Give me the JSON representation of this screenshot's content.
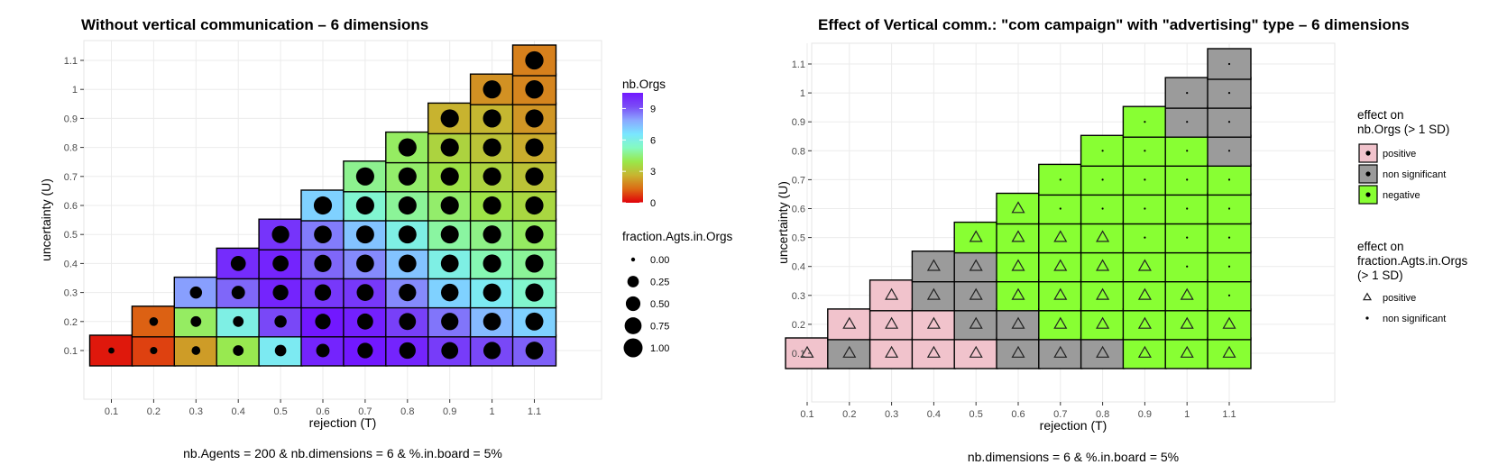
{
  "chart_data": [
    {
      "type": "heatmap",
      "title": "Without vertical communication – 6 dimensions",
      "xlabel": "rejection (T)",
      "ylabel": "uncertainty (U)",
      "caption": "nb.Agents = 200 & nb.dimensions = 6 & %.in.board = 5%",
      "x_ticks": [
        "0.1",
        "0.2",
        "0.3",
        "0.4",
        "0.5",
        "0.6",
        "0.7",
        "0.8",
        "0.9",
        "1",
        "1.1"
      ],
      "y_ticks": [
        "0.1",
        "0.2",
        "0.3",
        "0.4",
        "0.5",
        "0.6",
        "0.7",
        "0.8",
        "0.9",
        "1",
        "1.1"
      ],
      "fill_legend": {
        "title": "nb.Orgs",
        "ticks": [
          "0",
          "3",
          "6",
          "9"
        ],
        "range": [
          0,
          10.5
        ],
        "colors": [
          "#e0000a",
          "#dc6a14",
          "#c8b430",
          "#99e84a",
          "#84fac0",
          "#7ae6ff",
          "#8aa8ff",
          "#7a4cf6",
          "#7218ff"
        ]
      },
      "size_legend": {
        "title": "fraction.Agts.in.Orgs",
        "labels": [
          "0.00",
          "0.25",
          "0.50",
          "0.75",
          "1.00"
        ],
        "values": [
          0,
          0.25,
          0.5,
          0.75,
          1.0
        ]
      },
      "cells_note": "columns by rejection; each cell: [uncertainty, nb.Orgs, fraction.Agts.in.Orgs]",
      "columns": [
        {
          "x": "0.1",
          "cells": [
            [
              0.1,
              0.3,
              0.02
            ]
          ]
        },
        {
          "x": "0.2",
          "cells": [
            [
              0.1,
              0.8,
              0.05
            ],
            [
              0.2,
              1.2,
              0.1
            ]
          ]
        },
        {
          "x": "0.3",
          "cells": [
            [
              0.1,
              2.2,
              0.1
            ],
            [
              0.2,
              4.2,
              0.2
            ],
            [
              0.3,
              8.0,
              0.3
            ]
          ]
        },
        {
          "x": "0.4",
          "cells": [
            [
              0.1,
              4.0,
              0.2
            ],
            [
              0.2,
              6.0,
              0.2
            ],
            [
              0.3,
              8.8,
              0.4
            ],
            [
              0.4,
              10.0,
              0.55
            ]
          ]
        },
        {
          "x": "0.5",
          "cells": [
            [
              0.1,
              6.3,
              0.25
            ],
            [
              0.2,
              9.3,
              0.3
            ],
            [
              0.3,
              10.2,
              0.6
            ],
            [
              0.4,
              10.2,
              0.65
            ],
            [
              0.5,
              9.8,
              0.8
            ]
          ]
        },
        {
          "x": "0.6",
          "cells": [
            [
              0.1,
              10.2,
              0.4
            ],
            [
              0.2,
              10.5,
              0.6
            ],
            [
              0.3,
              9.7,
              0.7
            ],
            [
              0.4,
              8.8,
              0.8
            ],
            [
              0.5,
              8.5,
              0.85
            ],
            [
              0.6,
              7.0,
              0.9
            ]
          ]
        },
        {
          "x": "0.7",
          "cells": [
            [
              0.1,
              10.5,
              0.6
            ],
            [
              0.2,
              10.3,
              0.65
            ],
            [
              0.3,
              9.7,
              0.75
            ],
            [
              0.4,
              8.3,
              0.85
            ],
            [
              0.5,
              7.3,
              0.88
            ],
            [
              0.6,
              5.6,
              0.9
            ],
            [
              0.7,
              4.7,
              0.9
            ]
          ]
        },
        {
          "x": "0.8",
          "cells": [
            [
              0.1,
              10.2,
              0.7
            ],
            [
              0.2,
              9.5,
              0.75
            ],
            [
              0.3,
              8.3,
              0.8
            ],
            [
              0.4,
              7.3,
              0.85
            ],
            [
              0.5,
              6.0,
              0.88
            ],
            [
              0.6,
              4.8,
              0.9
            ],
            [
              0.7,
              4.3,
              0.9
            ],
            [
              0.8,
              4.2,
              0.9
            ]
          ]
        },
        {
          "x": "0.9",
          "cells": [
            [
              0.1,
              9.6,
              0.75
            ],
            [
              0.2,
              8.6,
              0.8
            ],
            [
              0.3,
              7.0,
              0.82
            ],
            [
              0.4,
              6.0,
              0.85
            ],
            [
              0.5,
              4.9,
              0.88
            ],
            [
              0.6,
              4.3,
              0.9
            ],
            [
              0.7,
              3.8,
              0.9
            ],
            [
              0.8,
              3.4,
              0.9
            ],
            [
              0.9,
              2.6,
              0.9
            ]
          ]
        },
        {
          "x": "1",
          "cells": [
            [
              0.1,
              9.3,
              0.8
            ],
            [
              0.2,
              7.5,
              0.85
            ],
            [
              0.3,
              6.3,
              0.88
            ],
            [
              0.4,
              5.1,
              0.9
            ],
            [
              0.5,
              4.6,
              0.9
            ],
            [
              0.6,
              3.8,
              0.9
            ],
            [
              0.7,
              3.4,
              0.9
            ],
            [
              0.8,
              3.0,
              0.9
            ],
            [
              0.9,
              2.7,
              0.9
            ],
            [
              1.0,
              2.0,
              0.9
            ]
          ]
        },
        {
          "x": "1.1",
          "cells": [
            [
              0.1,
              8.9,
              0.85
            ],
            [
              0.2,
              7.0,
              0.88
            ],
            [
              0.3,
              5.5,
              0.9
            ],
            [
              0.4,
              4.8,
              0.9
            ],
            [
              0.5,
              4.2,
              0.9
            ],
            [
              0.6,
              3.5,
              0.9
            ],
            [
              0.7,
              3.0,
              0.9
            ],
            [
              0.8,
              2.5,
              0.9
            ],
            [
              0.9,
              2.1,
              0.9
            ],
            [
              1.0,
              1.8,
              0.92
            ],
            [
              1.1,
              1.7,
              0.92
            ]
          ]
        }
      ]
    },
    {
      "type": "heatmap",
      "title": "Effect of Vertical comm.: \"com campaign\" with \"advertising\" type – 6 dimensions",
      "xlabel": "rejection (T)",
      "ylabel": "uncertainty (U)",
      "caption": "nb.dimensions = 6 & %.in.board = 5%",
      "x_ticks": [
        "0.1",
        "0.2",
        "0.3",
        "0.4",
        "0.5",
        "0.6",
        "0.7",
        "0.8",
        "0.9",
        "1",
        "1.1"
      ],
      "y_ticks": [
        "0.1",
        "0.2",
        "0.3",
        "0.4",
        "0.5",
        "0.6",
        "0.7",
        "0.8",
        "0.9",
        "1",
        "1.1"
      ],
      "fill_legend": {
        "title_lines": [
          "effect on",
          "nb.Orgs (> 1 SD)"
        ],
        "items": [
          {
            "key": "positive",
            "label": "positive",
            "color": "#f1c3cc"
          },
          {
            "key": "non significant",
            "label": "non significant",
            "color": "#9b9b9b"
          },
          {
            "key": "negative",
            "label": "negative",
            "color": "#88ff33"
          }
        ]
      },
      "shape_legend": {
        "title_lines": [
          "effect on",
          "fraction.Agts.in.Orgs",
          "(> 1 SD)"
        ],
        "items": [
          {
            "key": "positive",
            "label": "positive",
            "shape": "triangle"
          },
          {
            "key": "non significant",
            "label": "non significant",
            "shape": "dot"
          }
        ]
      },
      "cells_note": "columns by rejection; each cell: [uncertainty, effect on nb.Orgs, effect on fraction.Agts.in.Orgs]",
      "columns": [
        {
          "x": "0.1",
          "cells": [
            [
              0.1,
              "positive",
              "positive"
            ]
          ]
        },
        {
          "x": "0.2",
          "cells": [
            [
              0.1,
              "non significant",
              "positive"
            ],
            [
              0.2,
              "positive",
              "positive"
            ]
          ]
        },
        {
          "x": "0.3",
          "cells": [
            [
              0.1,
              "positive",
              "positive"
            ],
            [
              0.2,
              "positive",
              "positive"
            ],
            [
              0.3,
              "positive",
              "positive"
            ]
          ]
        },
        {
          "x": "0.4",
          "cells": [
            [
              0.1,
              "positive",
              "positive"
            ],
            [
              0.2,
              "positive",
              "positive"
            ],
            [
              0.3,
              "non significant",
              "positive"
            ],
            [
              0.4,
              "non significant",
              "positive"
            ]
          ]
        },
        {
          "x": "0.5",
          "cells": [
            [
              0.1,
              "positive",
              "positive"
            ],
            [
              0.2,
              "non significant",
              "positive"
            ],
            [
              0.3,
              "non significant",
              "positive"
            ],
            [
              0.4,
              "non significant",
              "positive"
            ],
            [
              0.5,
              "negative",
              "positive"
            ]
          ]
        },
        {
          "x": "0.6",
          "cells": [
            [
              0.1,
              "non significant",
              "positive"
            ],
            [
              0.2,
              "non significant",
              "positive"
            ],
            [
              0.3,
              "negative",
              "positive"
            ],
            [
              0.4,
              "negative",
              "positive"
            ],
            [
              0.5,
              "negative",
              "positive"
            ],
            [
              0.6,
              "negative",
              "positive"
            ]
          ]
        },
        {
          "x": "0.7",
          "cells": [
            [
              0.1,
              "non significant",
              "positive"
            ],
            [
              0.2,
              "negative",
              "positive"
            ],
            [
              0.3,
              "negative",
              "positive"
            ],
            [
              0.4,
              "negative",
              "positive"
            ],
            [
              0.5,
              "negative",
              "positive"
            ],
            [
              0.6,
              "negative",
              "non significant"
            ],
            [
              0.7,
              "negative",
              "non significant"
            ]
          ]
        },
        {
          "x": "0.8",
          "cells": [
            [
              0.1,
              "non significant",
              "positive"
            ],
            [
              0.2,
              "negative",
              "positive"
            ],
            [
              0.3,
              "negative",
              "positive"
            ],
            [
              0.4,
              "negative",
              "positive"
            ],
            [
              0.5,
              "negative",
              "positive"
            ],
            [
              0.6,
              "negative",
              "non significant"
            ],
            [
              0.7,
              "negative",
              "non significant"
            ],
            [
              0.8,
              "negative",
              "non significant"
            ]
          ]
        },
        {
          "x": "0.9",
          "cells": [
            [
              0.1,
              "negative",
              "positive"
            ],
            [
              0.2,
              "negative",
              "positive"
            ],
            [
              0.3,
              "negative",
              "positive"
            ],
            [
              0.4,
              "negative",
              "positive"
            ],
            [
              0.5,
              "negative",
              "non significant"
            ],
            [
              0.6,
              "negative",
              "non significant"
            ],
            [
              0.7,
              "negative",
              "non significant"
            ],
            [
              0.8,
              "negative",
              "non significant"
            ],
            [
              0.9,
              "negative",
              "non significant"
            ]
          ]
        },
        {
          "x": "1",
          "cells": [
            [
              0.1,
              "negative",
              "positive"
            ],
            [
              0.2,
              "negative",
              "positive"
            ],
            [
              0.3,
              "negative",
              "positive"
            ],
            [
              0.4,
              "negative",
              "non significant"
            ],
            [
              0.5,
              "negative",
              "non significant"
            ],
            [
              0.6,
              "negative",
              "non significant"
            ],
            [
              0.7,
              "negative",
              "non significant"
            ],
            [
              0.8,
              "negative",
              "non significant"
            ],
            [
              0.9,
              "non significant",
              "non significant"
            ],
            [
              1.0,
              "non significant",
              "non significant"
            ]
          ]
        },
        {
          "x": "1.1",
          "cells": [
            [
              0.1,
              "negative",
              "positive"
            ],
            [
              0.2,
              "negative",
              "positive"
            ],
            [
              0.3,
              "negative",
              "non significant"
            ],
            [
              0.4,
              "negative",
              "non significant"
            ],
            [
              0.5,
              "negative",
              "non significant"
            ],
            [
              0.6,
              "negative",
              "non significant"
            ],
            [
              0.7,
              "negative",
              "non significant"
            ],
            [
              0.8,
              "non significant",
              "non significant"
            ],
            [
              0.9,
              "non significant",
              "non significant"
            ],
            [
              1.0,
              "non significant",
              "non significant"
            ],
            [
              1.1,
              "non significant",
              "non significant"
            ]
          ]
        }
      ]
    }
  ]
}
